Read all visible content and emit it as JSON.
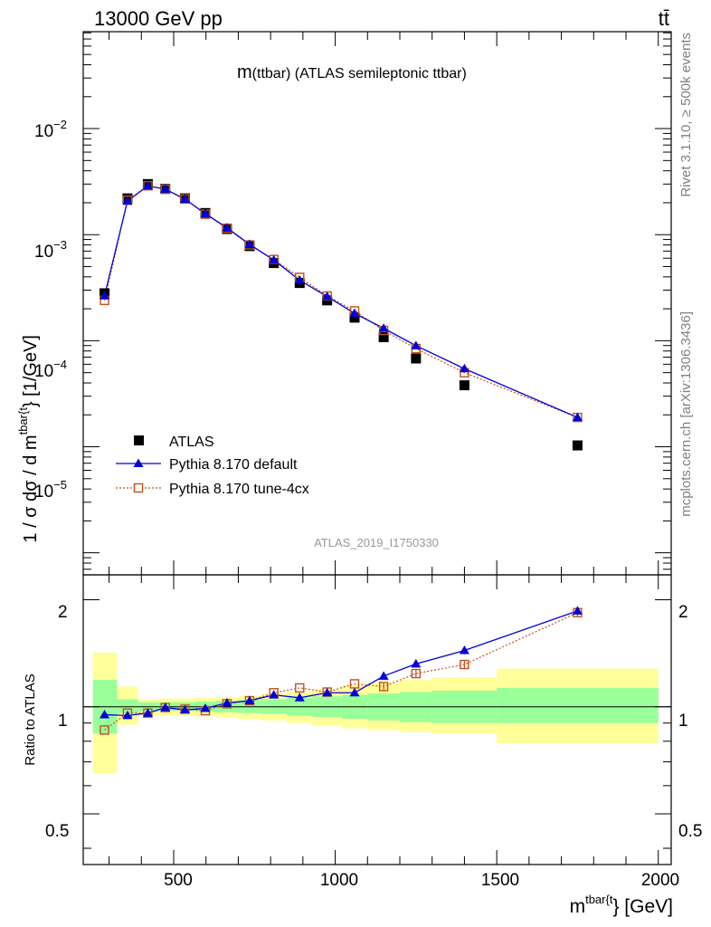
{
  "header": {
    "energy_label": "13000 GeV pp",
    "process_label": "tt̄"
  },
  "main_plot": {
    "title_main": "m",
    "title_sub": "(ttbar)",
    "title_rest": " (ATLAS semileptonic ttbar)",
    "ylabel": "1 / σ dσ / d m",
    "ylabel_sup": "tbar{t",
    "ylabel_unit": "} [1/GeV]",
    "watermark": "ATLAS_2019_I1750330",
    "y_ticks": [
      {
        "base": "10",
        "exp": "−2",
        "value": 0.01
      },
      {
        "base": "10",
        "exp": "−3",
        "value": 0.001
      },
      {
        "base": "10",
        "exp": "−4",
        "value": 0.0001
      },
      {
        "base": "10",
        "exp": "−5",
        "value": 1e-05
      }
    ],
    "ylim": [
      6.2e-07,
      0.082
    ]
  },
  "legend": {
    "entries": [
      {
        "label": "ATLAS",
        "series": "atlas"
      },
      {
        "label": "Pythia 8.170 default",
        "series": "default"
      },
      {
        "label": "Pythia 8.170 tune-4cx",
        "series": "tune4cx"
      }
    ]
  },
  "ratio_plot": {
    "ylabel": "Ratio to ATLAS",
    "y_ticks_left": [
      "2",
      "1",
      "0.5"
    ],
    "y_ticks_right": [
      "2",
      "1",
      "0.5"
    ],
    "tick_values": [
      2,
      1,
      0.5
    ],
    "ylim": [
      0.36,
      2.35
    ]
  },
  "x_axis": {
    "label_main": "m",
    "label_sup": "tbar{t",
    "label_unit": "} [GeV]",
    "ticks": [
      "500",
      "1000",
      "1500",
      "2000"
    ],
    "tick_values": [
      500,
      1000,
      1500,
      2000
    ],
    "xlim": [
      220,
      2040
    ]
  },
  "side_text": {
    "rivet": "Rivet 3.1.10, ≥ 500k events",
    "mcplots": "mcplots.cern.ch [arXiv:1306.3436]"
  },
  "chart_data": {
    "type": "scatter",
    "bins": [
      [
        250,
        325
      ],
      [
        325,
        390
      ],
      [
        390,
        450
      ],
      [
        450,
        500
      ],
      [
        500,
        570
      ],
      [
        570,
        630
      ],
      [
        630,
        700
      ],
      [
        700,
        770
      ],
      [
        770,
        850
      ],
      [
        850,
        930
      ],
      [
        930,
        1020
      ],
      [
        1020,
        1100
      ],
      [
        1100,
        1200
      ],
      [
        1200,
        1300
      ],
      [
        1300,
        1500
      ],
      [
        1500,
        2000
      ]
    ],
    "x": [
      286,
      357,
      420,
      474,
      535,
      598,
      665,
      735,
      810,
      890,
      975,
      1060,
      1150,
      1250,
      1400,
      1750
    ],
    "series": [
      {
        "name": "ATLAS",
        "values": [
          0.00028,
          0.0022,
          0.003,
          0.0027,
          0.0022,
          0.0016,
          0.00113,
          0.00078,
          0.00054,
          0.00035,
          0.00024,
          0.000165,
          0.000108,
          6.8e-05,
          3.8e-05,
          1.03e-05
        ]
      },
      {
        "name": "Pythia 8.170 default",
        "values": [
          0.000265,
          0.00208,
          0.00288,
          0.00269,
          0.00216,
          0.00158,
          0.00116,
          0.00081,
          0.000576,
          0.000372,
          0.000261,
          0.000181,
          0.000131,
          8.98e-05,
          5.45e-05,
          1.89e-05
        ],
        "ratio": [
          0.95,
          0.945,
          0.96,
          0.995,
          0.98,
          0.99,
          1.025,
          1.04,
          1.08,
          1.06,
          1.095,
          1.095,
          1.22,
          1.32,
          1.44,
          1.86
        ]
      },
      {
        "name": "Pythia 8.170 tune-4cx",
        "values": [
          0.00024,
          0.00211,
          0.00289,
          0.00268,
          0.00217,
          0.00156,
          0.00115,
          0.0008,
          0.000583,
          0.000396,
          0.000264,
          0.000191,
          0.000125,
          8.43e-05,
          4.99e-05,
          1.89e-05
        ],
        "ratio": [
          0.86,
          0.96,
          0.96,
          0.995,
          0.985,
          0.975,
          1.02,
          1.04,
          1.095,
          1.13,
          1.1,
          1.16,
          1.14,
          1.24,
          1.315,
          1.84
        ]
      }
    ],
    "uncertainty_bands": {
      "inner_green": [
        [
          0.84,
          1.19
        ],
        [
          0.96,
          1.05
        ],
        [
          0.97,
          1.03
        ],
        [
          0.975,
          1.03
        ],
        [
          0.975,
          1.03
        ],
        [
          0.97,
          1.035
        ],
        [
          0.965,
          1.04
        ],
        [
          0.96,
          1.045
        ],
        [
          0.955,
          1.05
        ],
        [
          0.945,
          1.06
        ],
        [
          0.935,
          1.07
        ],
        [
          0.925,
          1.08
        ],
        [
          0.915,
          1.09
        ],
        [
          0.905,
          1.1
        ],
        [
          0.9,
          1.11
        ],
        [
          0.9,
          1.13
        ]
      ],
      "outer_yellow": [
        [
          0.65,
          1.42
        ],
        [
          0.89,
          1.14
        ],
        [
          0.945,
          1.05
        ],
        [
          0.945,
          1.055
        ],
        [
          0.945,
          1.055
        ],
        [
          0.94,
          1.06
        ],
        [
          0.935,
          1.065
        ],
        [
          0.925,
          1.075
        ],
        [
          0.915,
          1.09
        ],
        [
          0.9,
          1.1
        ],
        [
          0.885,
          1.12
        ],
        [
          0.87,
          1.15
        ],
        [
          0.86,
          1.17
        ],
        [
          0.85,
          1.19
        ],
        [
          0.84,
          1.21
        ],
        [
          0.79,
          1.28
        ]
      ]
    },
    "title": "m(ttbar) (ATLAS semileptonic ttbar)",
    "xlabel": "m^{tbar{t}} [GeV]",
    "ylabel": "1 / σ dσ / d m^{tbar{t}} [1/GeV]",
    "xlim": [
      220,
      2040
    ],
    "ylim": [
      6.2e-07,
      0.082
    ],
    "ratio_ylim": [
      0.36,
      2.35
    ],
    "y_scale": "log",
    "legend_position": "bottom-left"
  },
  "colors": {
    "atlas": "#000000",
    "default": "#0000dd",
    "tune4cx": "#c3501c",
    "band_inner": "#99ff99",
    "band_outer": "#ffff99",
    "side_text": "#808080",
    "watermark": "#999999"
  }
}
